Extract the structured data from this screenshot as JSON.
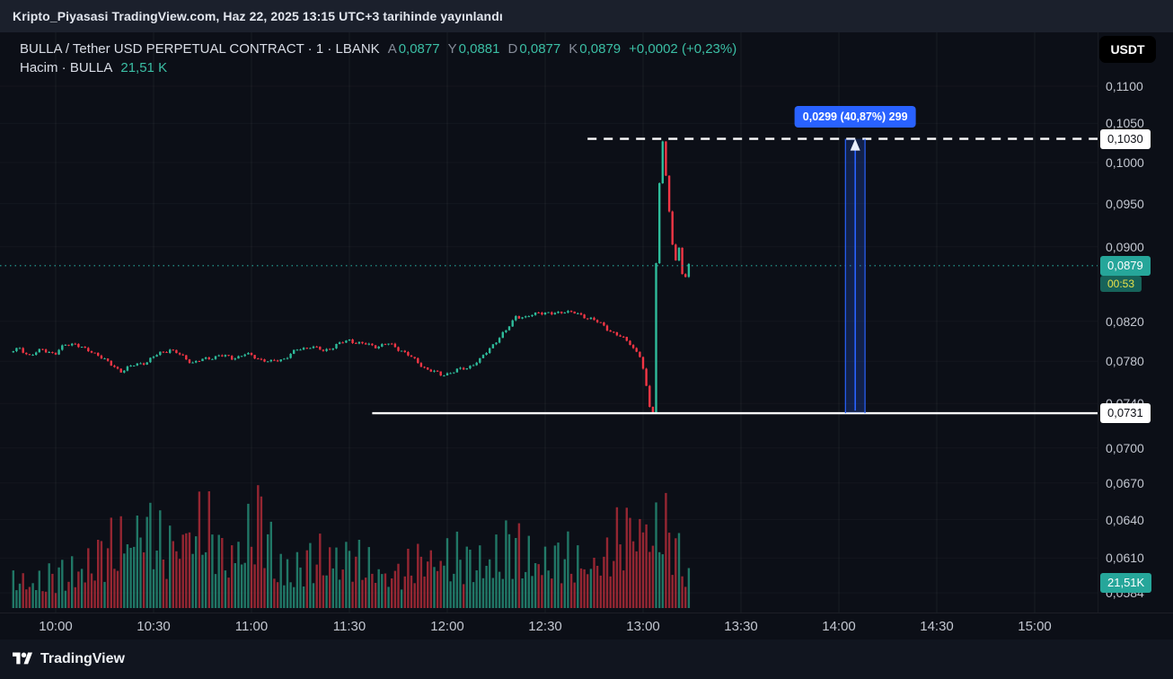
{
  "publish_bar": {
    "text": "Kripto_Piyasasi TradingView.com, Haz 22, 2025 13:15 UTC+3 tarihinde yayınlandı"
  },
  "legend": {
    "symbol": "BULLA / Tether USD PERPETUAL CONTRACT · 1 · LBANK",
    "ohlc": [
      {
        "label": "A",
        "value": "0,0877"
      },
      {
        "label": "Y",
        "value": "0,0881"
      },
      {
        "label": "D",
        "value": "0,0877"
      },
      {
        "label": "K",
        "value": "0,0879"
      }
    ],
    "change": "+0,0002 (+0,23%)",
    "volume_label": "Hacim · BULLA",
    "volume_value": "21,51 K"
  },
  "currency_button": "USDT",
  "price_labels": {
    "high_line": "0,1030",
    "last_price": "0,0879",
    "countdown": "00:53",
    "low_line": "0,0731",
    "volume_badge": "21,51K"
  },
  "footer": {
    "brand": "TradingView"
  },
  "colors": {
    "up": "#2ebc9b",
    "down": "#f23645",
    "accent_teal": "#26a69a",
    "legend_value": "#3bbfa5",
    "countdown_bg": "#17635a",
    "countdown_text": "#e9e24b",
    "measure_blue": "#2962ff",
    "chart_bg": "#0c0f17",
    "publish_bar_bg": "#1b202c",
    "footer_bg": "#11151f",
    "tick_text": "#c3c7d0",
    "text_primary": "#d9dde6",
    "text_secondary": "#868c99",
    "grid": "rgba(255,255,255,0.055)"
  },
  "chart_data": {
    "type": "candlestick",
    "interval": "1m",
    "price_scale": "log",
    "x_ticks": [
      "10:00",
      "10:30",
      "11:00",
      "11:30",
      "12:00",
      "12:30",
      "13:00",
      "13:30",
      "14:00",
      "14:30",
      "15:00"
    ],
    "y_ticks": [
      "0,1100",
      "0,1050",
      "0,1000",
      "0,0950",
      "0,0900",
      "0,0820",
      "0,0780",
      "0,0740",
      "0,0700",
      "0,0670",
      "0,0640",
      "0,0610",
      "0,0584"
    ],
    "data_time_range": [
      "09:46",
      "13:14"
    ],
    "session_high": 0.103,
    "session_low": 0.0731,
    "last_price": 0.0879,
    "last_bar": {
      "open": 0.0877,
      "high": 0.0881,
      "low": 0.0877,
      "close": 0.0879,
      "change": 0.0002,
      "change_pct": 0.23,
      "volume": "21,51 K"
    },
    "levels": [
      {
        "name": "session-high-ray",
        "value": 0.103,
        "style": "dashed",
        "color": "#ffffff",
        "from_time": "12:43"
      },
      {
        "name": "session-low-ray",
        "value": 0.0731,
        "style": "solid",
        "color": "#ffffff",
        "from_time": "11:37"
      },
      {
        "name": "last-price-line",
        "value": 0.0879,
        "style": "dotted",
        "color": "#26a69a"
      }
    ],
    "measurement": {
      "label": "0,0299 (40,87%) 299",
      "from_price": 0.0731,
      "to_price": 0.103,
      "price_change": 0.0299,
      "percent_change": 40.87,
      "bars_value": 299,
      "time_start": "14:02",
      "time_end": "14:08"
    },
    "price_path_keypoints": [
      [
        "09:46",
        0.0789
      ],
      [
        "09:49",
        0.0792
      ],
      [
        "09:52",
        0.0786
      ],
      [
        "09:56",
        0.0791
      ],
      [
        "10:00",
        0.0788
      ],
      [
        "10:03",
        0.0796
      ],
      [
        "10:06",
        0.0798
      ],
      [
        "10:09",
        0.0791
      ],
      [
        "10:13",
        0.0787
      ],
      [
        "10:17",
        0.0776
      ],
      [
        "10:20",
        0.0771
      ],
      [
        "10:24",
        0.0776
      ],
      [
        "10:28",
        0.078
      ],
      [
        "10:32",
        0.0788
      ],
      [
        "10:35",
        0.0792
      ],
      [
        "10:38",
        0.0786
      ],
      [
        "10:42",
        0.0779
      ],
      [
        "10:46",
        0.0782
      ],
      [
        "10:50",
        0.0786
      ],
      [
        "10:54",
        0.0783
      ],
      [
        "10:58",
        0.0787
      ],
      [
        "11:02",
        0.0783
      ],
      [
        "11:06",
        0.0779
      ],
      [
        "11:10",
        0.0783
      ],
      [
        "11:14",
        0.0791
      ],
      [
        "11:18",
        0.0795
      ],
      [
        "11:22",
        0.079
      ],
      [
        "11:26",
        0.0796
      ],
      [
        "11:30",
        0.0801
      ],
      [
        "11:34",
        0.0797
      ],
      [
        "11:38",
        0.0795
      ],
      [
        "11:42",
        0.0797
      ],
      [
        "11:46",
        0.0791
      ],
      [
        "11:50",
        0.0781
      ],
      [
        "11:54",
        0.0772
      ],
      [
        "11:58",
        0.0767
      ],
      [
        "12:02",
        0.077
      ],
      [
        "12:06",
        0.0774
      ],
      [
        "12:10",
        0.0781
      ],
      [
        "12:14",
        0.0797
      ],
      [
        "12:18",
        0.081
      ],
      [
        "12:21",
        0.0826
      ],
      [
        "12:24",
        0.0823
      ],
      [
        "12:28",
        0.083
      ],
      [
        "12:32",
        0.0827
      ],
      [
        "12:36",
        0.0831
      ],
      [
        "12:40",
        0.0827
      ],
      [
        "12:44",
        0.0823
      ],
      [
        "12:48",
        0.0815
      ],
      [
        "12:52",
        0.0806
      ],
      [
        "12:56",
        0.0798
      ],
      [
        "12:59",
        0.0785
      ],
      [
        "13:00",
        0.0772
      ],
      [
        "13:02",
        0.0737
      ],
      [
        "13:03",
        0.0731
      ],
      [
        "13:04",
        0.0882
      ],
      [
        "13:05",
        0.0975
      ],
      [
        "13:06",
        0.1028
      ],
      [
        "13:07",
        0.0982
      ],
      [
        "13:08",
        0.0938
      ],
      [
        "13:09",
        0.0903
      ],
      [
        "13:10",
        0.0886
      ],
      [
        "13:11",
        0.0899
      ],
      [
        "13:12",
        0.0871
      ],
      [
        "13:13",
        0.0868
      ],
      [
        "13:14",
        0.0879
      ]
    ],
    "volume_envelope_keypoints": [
      [
        "09:46",
        0.35
      ],
      [
        "09:52",
        0.3
      ],
      [
        "10:00",
        0.35
      ],
      [
        "10:08",
        0.5
      ],
      [
        "10:15",
        0.6
      ],
      [
        "10:21",
        0.8
      ],
      [
        "10:27",
        0.95
      ],
      [
        "10:33",
        0.65
      ],
      [
        "10:39",
        0.85
      ],
      [
        "10:46",
        0.9
      ],
      [
        "10:52",
        0.6
      ],
      [
        "10:58",
        0.75
      ],
      [
        "11:03",
        1.0
      ],
      [
        "11:08",
        0.55
      ],
      [
        "11:14",
        0.45
      ],
      [
        "11:20",
        0.55
      ],
      [
        "11:27",
        0.65
      ],
      [
        "11:33",
        0.5
      ],
      [
        "11:40",
        0.4
      ],
      [
        "11:47",
        0.4
      ],
      [
        "11:53",
        0.55
      ],
      [
        "12:00",
        0.6
      ],
      [
        "12:07",
        0.5
      ],
      [
        "12:13",
        0.6
      ],
      [
        "12:19",
        0.7
      ],
      [
        "12:25",
        0.6
      ],
      [
        "12:31",
        0.55
      ],
      [
        "12:37",
        0.55
      ],
      [
        "12:43",
        0.5
      ],
      [
        "12:49",
        0.55
      ],
      [
        "12:54",
        0.85
      ],
      [
        "12:58",
        1.0
      ],
      [
        "13:02",
        0.9
      ],
      [
        "13:04",
        0.8
      ],
      [
        "13:06",
        0.95
      ],
      [
        "13:08",
        0.75
      ],
      [
        "13:11",
        0.65
      ],
      [
        "13:14",
        0.4
      ]
    ]
  }
}
